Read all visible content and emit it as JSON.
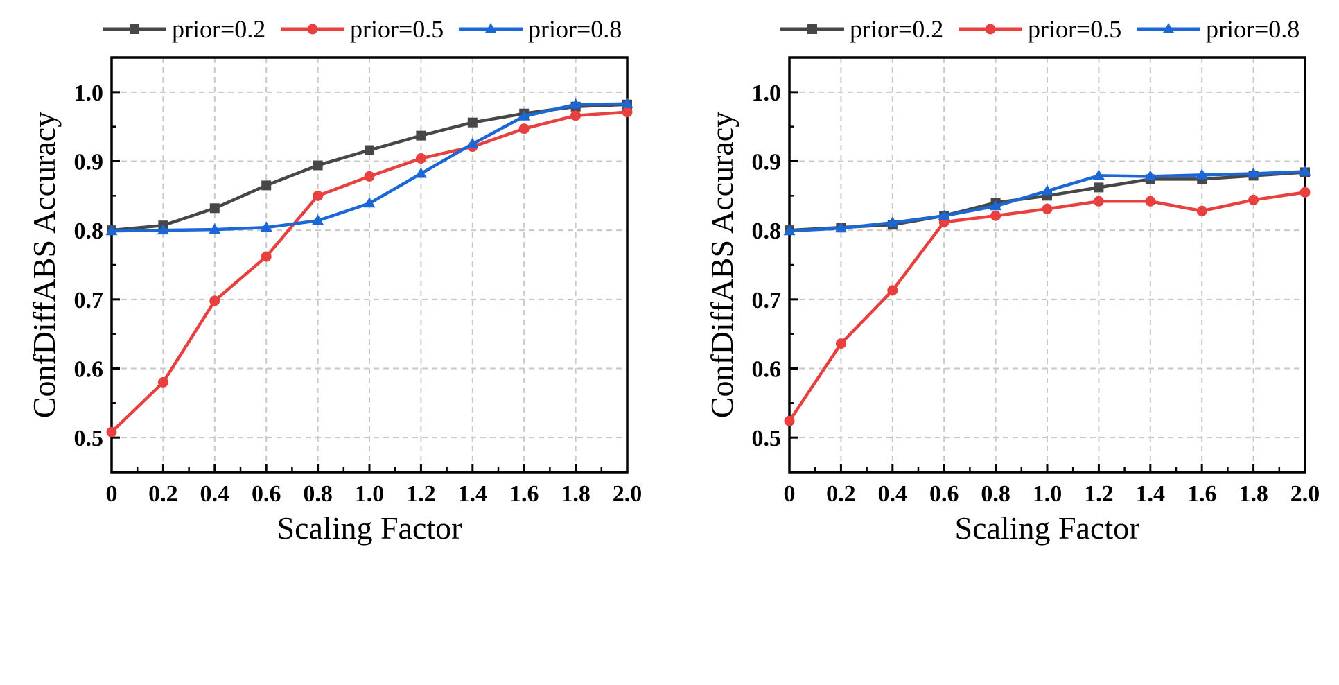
{
  "colors": {
    "prior_02": "#474747",
    "prior_05": "#e8403f",
    "prior_08": "#1c67d6",
    "grid": "#c8c8c8",
    "axis": "#000000"
  },
  "chart_data": [
    {
      "type": "line",
      "title": "",
      "xlabel": "Scaling Factor",
      "ylabel": "ConfDiffABS Accuracy",
      "xlim": [
        0,
        2.0
      ],
      "ylim": [
        0.45,
        1.05
      ],
      "grid": true,
      "legend_position": "top",
      "x": [
        0,
        0.2,
        0.4,
        0.6,
        0.8,
        1.0,
        1.2,
        1.4,
        1.6,
        1.8,
        2.0
      ],
      "x_tick_labels": [
        "0",
        "0.2",
        "0.4",
        "0.6",
        "0.8",
        "1.0",
        "1.2",
        "1.4",
        "1.6",
        "1.8",
        "2.0"
      ],
      "y_ticks": [
        0.5,
        0.6,
        0.7,
        0.8,
        0.9,
        1.0
      ],
      "y_tick_labels": [
        "0.5",
        "0.6",
        "0.7",
        "0.8",
        "0.9",
        "1.0"
      ],
      "series": [
        {
          "name": "prior=0.2",
          "color": "#474747",
          "marker": "square",
          "values": [
            0.8,
            0.807,
            0.832,
            0.865,
            0.894,
            0.916,
            0.937,
            0.956,
            0.969,
            0.979,
            0.982
          ]
        },
        {
          "name": "prior=0.5",
          "color": "#e8403f",
          "marker": "circle",
          "values": [
            0.508,
            0.58,
            0.698,
            0.762,
            0.85,
            0.878,
            0.904,
            0.921,
            0.947,
            0.966,
            0.971
          ]
        },
        {
          "name": "prior=0.8",
          "color": "#1c67d6",
          "marker": "triangle",
          "values": [
            0.799,
            0.8,
            0.801,
            0.804,
            0.814,
            0.839,
            0.882,
            0.925,
            0.965,
            0.982,
            0.983
          ]
        }
      ]
    },
    {
      "type": "line",
      "title": "",
      "xlabel": "Scaling Factor",
      "ylabel": "ConfDiffABS Accuracy",
      "xlim": [
        0,
        2.0
      ],
      "ylim": [
        0.45,
        1.05
      ],
      "grid": true,
      "legend_position": "top",
      "x": [
        0,
        0.2,
        0.4,
        0.6,
        0.8,
        1.0,
        1.2,
        1.4,
        1.6,
        1.8,
        2.0
      ],
      "x_tick_labels": [
        "0",
        "0.2",
        "0.4",
        "0.6",
        "0.8",
        "1.0",
        "1.2",
        "1.4",
        "1.6",
        "1.8",
        "2.0"
      ],
      "y_ticks": [
        0.5,
        0.6,
        0.7,
        0.8,
        0.9,
        1.0
      ],
      "y_tick_labels": [
        "0.5",
        "0.6",
        "0.7",
        "0.8",
        "0.9",
        "1.0"
      ],
      "series": [
        {
          "name": "prior=0.2",
          "color": "#474747",
          "marker": "square",
          "values": [
            0.8,
            0.804,
            0.808,
            0.821,
            0.84,
            0.85,
            0.862,
            0.874,
            0.874,
            0.879,
            0.884
          ]
        },
        {
          "name": "prior=0.5",
          "color": "#e8403f",
          "marker": "circle",
          "values": [
            0.524,
            0.636,
            0.713,
            0.812,
            0.821,
            0.831,
            0.842,
            0.842,
            0.828,
            0.844,
            0.855
          ]
        },
        {
          "name": "prior=0.8",
          "color": "#1c67d6",
          "marker": "triangle",
          "values": [
            0.799,
            0.803,
            0.811,
            0.821,
            0.835,
            0.857,
            0.879,
            0.878,
            0.88,
            0.882,
            0.885
          ]
        }
      ]
    }
  ]
}
